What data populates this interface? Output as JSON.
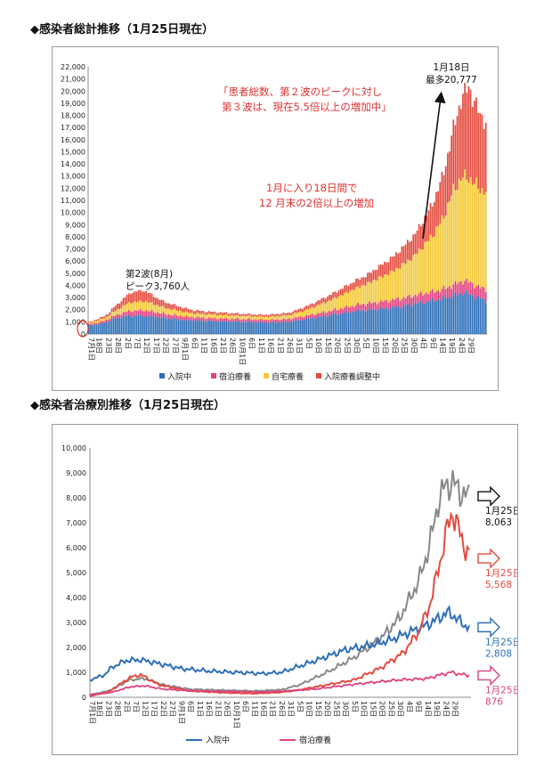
{
  "titles": {
    "chart1": "◆感染者総計推移（1月25日現在）",
    "chart2": "◆感染者治療別推移（1月25日現在）"
  },
  "chart_data": [
    {
      "type": "bar",
      "stacked": true,
      "title": "感染者総計推移（1月25日現在）",
      "ylim": [
        0,
        22000
      ],
      "yticks": [
        "0",
        "1,000",
        "2,000",
        "3,000",
        "4,000",
        "5,000",
        "6,000",
        "7,000",
        "8,000",
        "9,000",
        "10,000",
        "11,000",
        "12,000",
        "13,000",
        "14,000",
        "15,000",
        "16,000",
        "17,000",
        "18,000",
        "19,000",
        "20,000",
        "21,000",
        "22,000"
      ],
      "xticks": [
        "7月1日",
        "18日",
        "23日",
        "28日",
        "2日",
        "7日",
        "12日",
        "17日",
        "22日",
        "27日",
        "9月1日",
        "6日",
        "11日",
        "16日",
        "21日",
        "26日",
        "10月1日",
        "6日",
        "11日",
        "16日",
        "21日",
        "26日",
        "31日",
        "5日",
        "10日",
        "15日",
        "20日",
        "25日",
        "30日",
        "5日",
        "10日",
        "15日",
        "20日",
        "25日",
        "30日",
        "4日",
        "9日",
        "14日",
        "19日",
        "24日",
        "29日"
      ],
      "x_index_of_ticks": [
        0,
        4,
        9,
        14,
        19,
        24,
        29,
        34,
        39,
        44,
        49,
        54,
        59,
        64,
        69,
        74,
        79,
        84,
        89,
        94,
        99,
        104,
        109,
        114,
        119,
        124,
        129,
        134,
        139,
        144,
        149,
        154,
        159,
        164,
        169,
        174,
        179,
        184,
        189,
        194,
        199
      ],
      "days": 209,
      "series": [
        {
          "name": "入院中",
          "color": "#2e6fb8",
          "knots": [
            [
              0,
              700
            ],
            [
              8,
              900
            ],
            [
              12,
              1200
            ],
            [
              20,
              1480
            ],
            [
              28,
              1500
            ],
            [
              38,
              1350
            ],
            [
              50,
              1150
            ],
            [
              65,
              1050
            ],
            [
              80,
              1000
            ],
            [
              95,
              950
            ],
            [
              105,
              1000
            ],
            [
              113,
              1200
            ],
            [
              125,
              1500
            ],
            [
              140,
              1900
            ],
            [
              155,
              2100
            ],
            [
              165,
              2300
            ],
            [
              175,
              2600
            ],
            [
              185,
              2900
            ],
            [
              192,
              3200
            ],
            [
              196,
              3400
            ],
            [
              199,
              3300
            ],
            [
              205,
              2900
            ],
            [
              209,
              2800
            ]
          ]
        },
        {
          "name": "宿泊療養",
          "color": "#e0407f",
          "knots": [
            [
              0,
              100
            ],
            [
              12,
              200
            ],
            [
              22,
              420
            ],
            [
              30,
              460
            ],
            [
              40,
              330
            ],
            [
              55,
              260
            ],
            [
              75,
              230
            ],
            [
              95,
              210
            ],
            [
              110,
              260
            ],
            [
              125,
              340
            ],
            [
              140,
              480
            ],
            [
              155,
              600
            ],
            [
              170,
              700
            ],
            [
              185,
              750
            ],
            [
              192,
              900
            ],
            [
              198,
              1000
            ],
            [
              205,
              900
            ],
            [
              209,
              876
            ]
          ]
        },
        {
          "name": "自宅療養",
          "color": "#f3c936",
          "knots": [
            [
              0,
              100
            ],
            [
              10,
              250
            ],
            [
              22,
              700
            ],
            [
              30,
              750
            ],
            [
              40,
              500
            ],
            [
              55,
              320
            ],
            [
              75,
              280
            ],
            [
              90,
              250
            ],
            [
              105,
              300
            ],
            [
              115,
              500
            ],
            [
              130,
              1000
            ],
            [
              145,
              1600
            ],
            [
              160,
              2400
            ],
            [
              170,
              3200
            ],
            [
              180,
              4600
            ],
            [
              186,
              6000
            ],
            [
              191,
              7800
            ],
            [
              195,
              8500
            ],
            [
              199,
              8600
            ],
            [
              205,
              8100
            ],
            [
              209,
              8063
            ]
          ]
        },
        {
          "name": "入院療養調整中",
          "color": "#e44b3f",
          "knots": [
            [
              0,
              50
            ],
            [
              10,
              200
            ],
            [
              22,
              800
            ],
            [
              28,
              900
            ],
            [
              38,
              500
            ],
            [
              55,
              250
            ],
            [
              75,
              180
            ],
            [
              90,
              150
            ],
            [
              105,
              200
            ],
            [
              115,
              300
            ],
            [
              130,
              500
            ],
            [
              145,
              700
            ],
            [
              160,
              1200
            ],
            [
              172,
              1800
            ],
            [
              180,
              2600
            ],
            [
              186,
              3600
            ],
            [
              192,
              5400
            ],
            [
              196,
              6800
            ],
            [
              199,
              7400
            ],
            [
              202,
              6800
            ],
            [
              205,
              6100
            ],
            [
              209,
              5568
            ]
          ]
        }
      ],
      "legend": [
        "入院中",
        "宿泊療養",
        "自宅療養",
        "入院療養調整中"
      ],
      "legend_position": "bottom",
      "annotations": {
        "wave2": [
          "第2波(8月)",
          "ピーク3,760人"
        ],
        "peak": [
          "1月18日",
          "最多20,777"
        ],
        "red1": [
          "「患者総数、第２波のピークに対し",
          "第３波は、現在5.5倍以上の増加中」"
        ],
        "red2": [
          "1月に入り18日間で",
          "12 月末の2倍以上の増加"
        ]
      }
    },
    {
      "type": "line",
      "title": "感染者治療別推移（1月25日現在）",
      "ylim": [
        0,
        10000
      ],
      "yticks": [
        "0",
        "1,000",
        "2,000",
        "3,000",
        "4,000",
        "5,000",
        "6,000",
        "7,000",
        "8,000",
        "9,000",
        "10,000"
      ],
      "xticks": [
        "7月1日",
        "18日",
        "23日",
        "28日",
        "2日",
        "7日",
        "12日",
        "17日",
        "22日",
        "27日",
        "9月1日",
        "6日",
        "11日",
        "16日",
        "21日",
        "26日",
        "10月1日",
        "6日",
        "11日",
        "16日",
        "21日",
        "26日",
        "31日",
        "5日",
        "10日",
        "15日",
        "20日",
        "25日",
        "30日",
        "5日",
        "10日",
        "15日",
        "20日",
        "25日",
        "30日",
        "4日",
        "9日",
        "14日",
        "19日",
        "24日",
        "29日"
      ],
      "series": [
        {
          "name": "入院中",
          "color": "#2e6fb8",
          "label": [
            "1月25日",
            "2,808"
          ]
        },
        {
          "name": "宿泊療養",
          "color": "#e0407f",
          "label": [
            "1月25日",
            "876"
          ]
        },
        {
          "name": "自宅療養",
          "color": "#888888",
          "label": [
            "1月25日",
            "8,063"
          ]
        },
        {
          "name": "入院療養調整中",
          "color": "#e44b3f",
          "label": [
            "1月25日",
            "5,568"
          ]
        }
      ],
      "legend": [
        "入院中",
        "宿泊療養"
      ],
      "legend_position": "bottom"
    }
  ]
}
